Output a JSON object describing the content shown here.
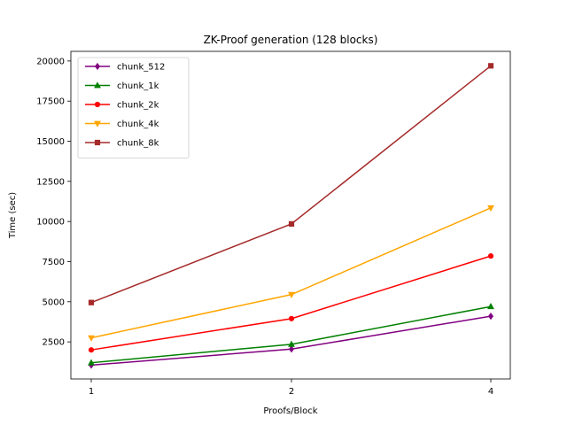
{
  "chart_data": {
    "type": "line",
    "title": "ZK-Proof generation (128 blocks)",
    "xlabel": "Proofs/Block",
    "ylabel": "Time (sec)",
    "categories": [
      "1",
      "2",
      "4"
    ],
    "yticks": [
      2500,
      5000,
      7500,
      10000,
      12500,
      15000,
      17500,
      20000
    ],
    "ylim": [
      190,
      20600
    ],
    "grid": false,
    "legend_position": "top-left",
    "series": [
      {
        "name": "chunk_512",
        "color": "#800080",
        "marker": "diamond",
        "values": [
          1050,
          2050,
          4100
        ]
      },
      {
        "name": "chunk_1k",
        "color": "#008000",
        "marker": "triangle-up",
        "values": [
          1200,
          2350,
          4700
        ]
      },
      {
        "name": "chunk_2k",
        "color": "#ff0000",
        "marker": "circle",
        "values": [
          2000,
          3950,
          7850
        ]
      },
      {
        "name": "chunk_4k",
        "color": "#ffa500",
        "marker": "triangle-down",
        "values": [
          2750,
          5450,
          10850
        ]
      },
      {
        "name": "chunk_8k",
        "color": "#a52a2a",
        "marker": "square",
        "values": [
          4950,
          9850,
          19700
        ]
      }
    ]
  }
}
